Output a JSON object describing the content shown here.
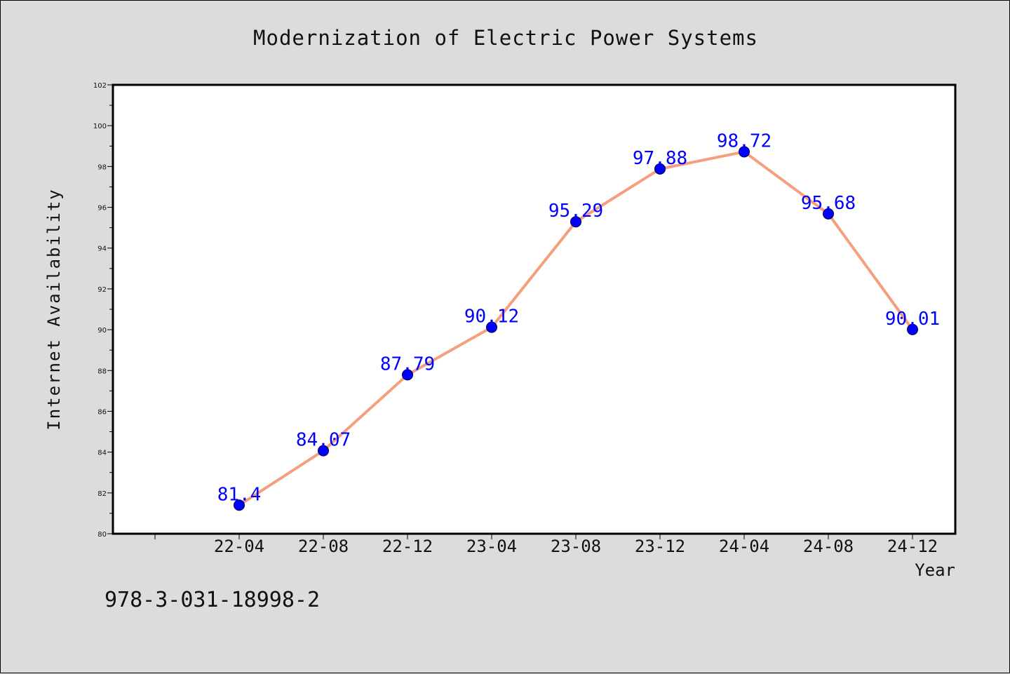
{
  "chart_data": {
    "type": "line",
    "title": "Modernization of Electric Power Systems",
    "xlabel": "Year",
    "ylabel": "Internet Availability",
    "categories": [
      "22-04",
      "22-08",
      "22-12",
      "23-04",
      "23-08",
      "23-12",
      "24-04",
      "24-08",
      "24-12"
    ],
    "values": [
      81.4,
      84.07,
      87.79,
      90.12,
      95.29,
      97.88,
      98.72,
      95.68,
      90.01
    ],
    "data_labels": [
      "81.4",
      "84.07",
      "87.79",
      "90.12",
      "95.29",
      "97.88",
      "98.72",
      "95.68",
      "90.01"
    ],
    "ylim": [
      80,
      102
    ],
    "yticks": [
      80,
      82,
      84,
      86,
      88,
      90,
      92,
      94,
      96,
      98,
      100,
      102
    ],
    "grid": false,
    "line_color": "#f4a07f",
    "marker_color": "#0000ff",
    "label_color": "#0000ff"
  },
  "footer": {
    "isbn": "978-3-031-18998-2"
  }
}
